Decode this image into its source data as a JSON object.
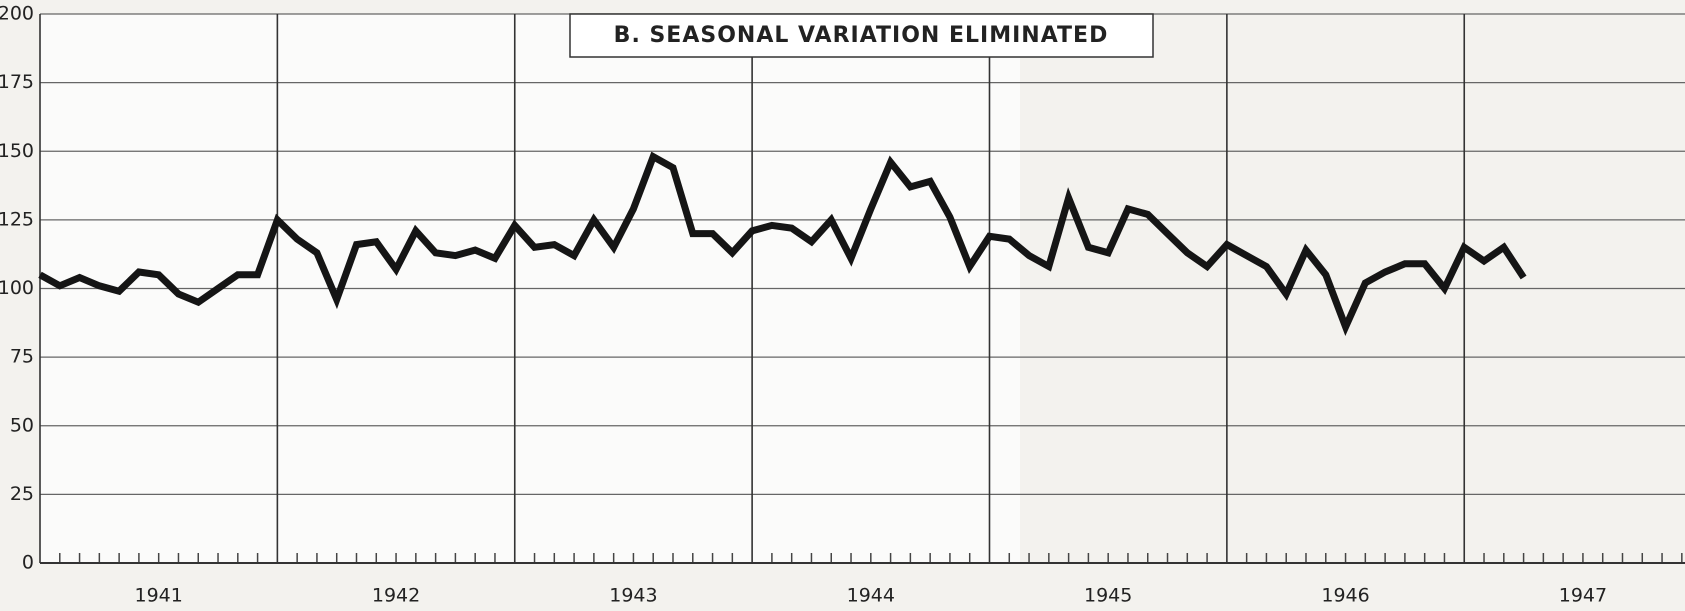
{
  "chart_data": {
    "type": "line",
    "title": "B. SEASONAL VARIATION ELIMINATED",
    "x": [
      1941,
      1941.0833,
      1941.1667,
      1941.25,
      1941.3333,
      1941.4167,
      1941.5,
      1941.5833,
      1941.6667,
      1941.75,
      1941.8333,
      1941.9167,
      1942,
      1942.0833,
      1942.1667,
      1942.25,
      1942.3333,
      1942.4167,
      1942.5,
      1942.5833,
      1942.6667,
      1942.75,
      1942.8333,
      1942.9167,
      1943,
      1943.0833,
      1943.1667,
      1943.25,
      1943.3333,
      1943.4167,
      1943.5,
      1943.5833,
      1943.6667,
      1943.75,
      1943.8333,
      1943.9167,
      1944,
      1944.0833,
      1944.1667,
      1944.25,
      1944.3333,
      1944.4167,
      1944.5,
      1944.5833,
      1944.6667,
      1944.75,
      1944.8333,
      1944.9167,
      1945,
      1945.0833,
      1945.1667,
      1945.25,
      1945.3333,
      1945.4167,
      1945.5,
      1945.5833,
      1945.6667,
      1945.75,
      1945.8333,
      1945.9167,
      1946,
      1946.0833,
      1946.1667,
      1946.25,
      1946.3333,
      1946.4167,
      1946.5,
      1946.5833,
      1946.6667,
      1946.75,
      1946.8333,
      1946.9167,
      1947,
      1947.0833,
      1947.1667,
      1947.25
    ],
    "series": [
      {
        "color": "#151515",
        "values": [
          105,
          101,
          104,
          101,
          99,
          106,
          105,
          98,
          95,
          100,
          105,
          105,
          125,
          118,
          113,
          96,
          116,
          117,
          107,
          121,
          113,
          112,
          114,
          111,
          123,
          115,
          116,
          112,
          125,
          115,
          129,
          148,
          144,
          120,
          120,
          113,
          121,
          123,
          122,
          117,
          125,
          111,
          129,
          146,
          137,
          139,
          126,
          108,
          119,
          118,
          112,
          108,
          133,
          115,
          113,
          129,
          127,
          120,
          113,
          108,
          116,
          112,
          108,
          98,
          114,
          105,
          86,
          102,
          106,
          109,
          109,
          100,
          115,
          110,
          115,
          104
        ]
      }
    ],
    "xlim": [
      1941,
      1947.93
    ],
    "xticks": [
      1941,
      1942,
      1943,
      1944,
      1945,
      1946,
      1947
    ],
    "ylim": [
      0,
      200
    ],
    "yticks": [
      0,
      25,
      50,
      75,
      100,
      125,
      150,
      175,
      200
    ],
    "grid": true
  }
}
